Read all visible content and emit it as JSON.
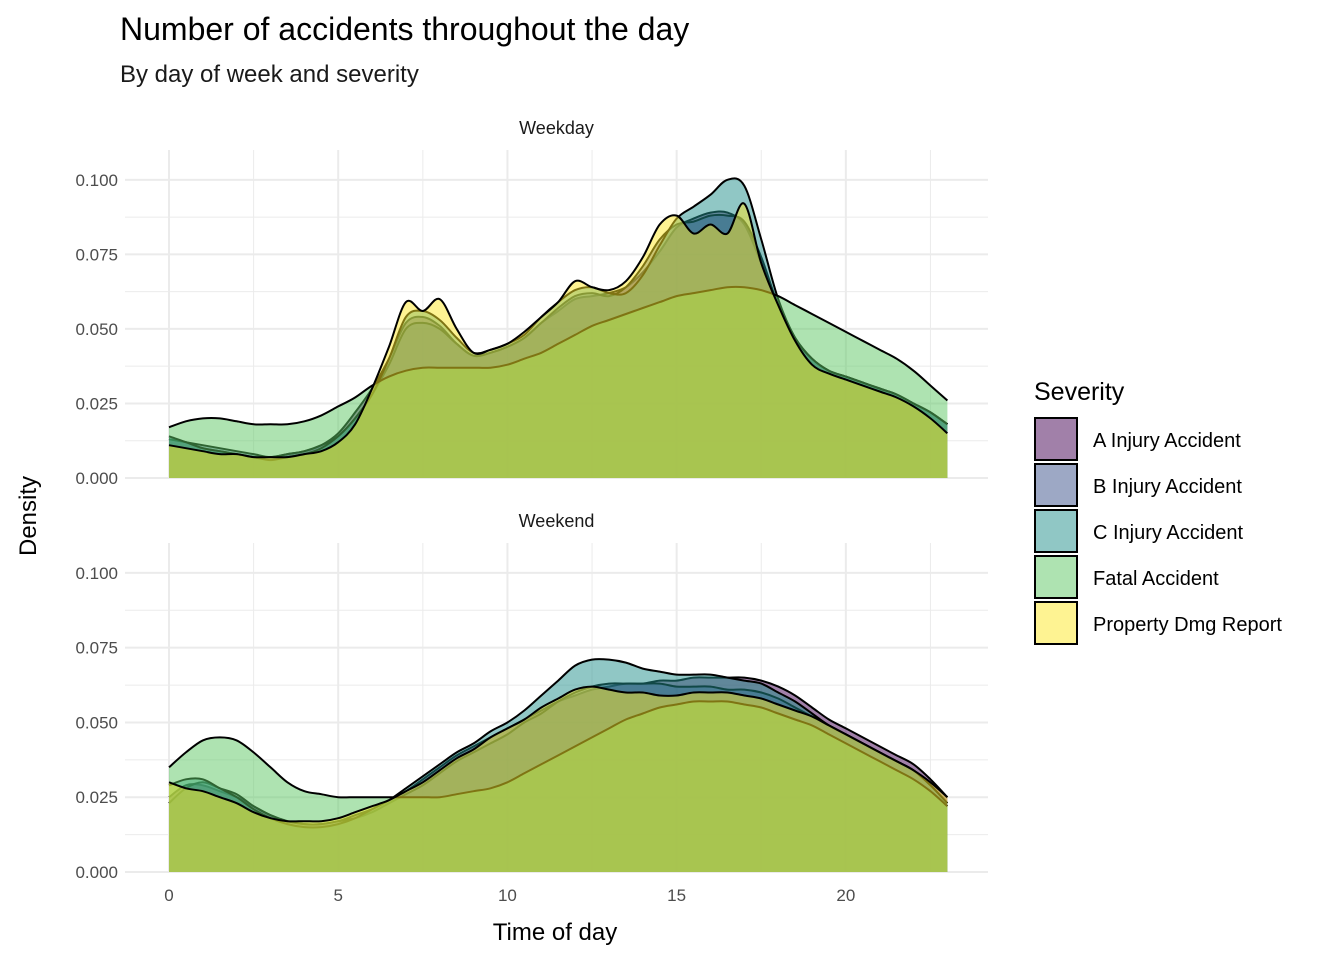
{
  "chart_data": {
    "type": "area",
    "chart_kind": "density",
    "title": "Number of accidents throughout the day",
    "subtitle": "By day of week and severity",
    "xlabel": "Time of day",
    "ylabel": "Density",
    "xlim": [
      -1.3,
      24.2
    ],
    "ylim": [
      0,
      0.11
    ],
    "x_ticks": [
      0,
      5,
      10,
      15,
      20
    ],
    "y_ticks": [
      0,
      0.025,
      0.05,
      0.075,
      0.1
    ],
    "y_tick_labels": [
      "0.000",
      "0.025",
      "0.050",
      "0.075",
      "0.100"
    ],
    "grid": true,
    "legend": {
      "title": "Severity",
      "position": "right"
    },
    "fill_opacity": 0.5,
    "facets": [
      "Weekday",
      "Weekend"
    ],
    "x": [
      0,
      0.5,
      1,
      1.5,
      2,
      2.5,
      3,
      3.5,
      4,
      4.5,
      5,
      5.5,
      6,
      6.5,
      7,
      7.5,
      8,
      8.5,
      9,
      9.5,
      10,
      10.5,
      11,
      11.5,
      12,
      12.5,
      13,
      13.5,
      14,
      14.5,
      15,
      15.5,
      16,
      16.5,
      17,
      17.5,
      18,
      18.5,
      19,
      19.5,
      20,
      20.5,
      21,
      21.5,
      22,
      22.5,
      23
    ],
    "series": [
      {
        "name": "A Injury Accident",
        "color": "#440154"
      },
      {
        "name": "B Injury Accident",
        "color": "#3b528b"
      },
      {
        "name": "C Injury Accident",
        "color": "#21908c"
      },
      {
        "name": "Fatal Accident",
        "color": "#5dc863"
      },
      {
        "name": "Property Dmg Report",
        "color": "#fde725"
      }
    ],
    "panels": [
      {
        "facet": "Weekday",
        "values": {
          "A Injury Accident": [
            0.013,
            0.012,
            0.01,
            0.009,
            0.008,
            0.007,
            0.007,
            0.008,
            0.009,
            0.011,
            0.015,
            0.022,
            0.03,
            0.04,
            0.052,
            0.054,
            0.051,
            0.045,
            0.041,
            0.042,
            0.044,
            0.047,
            0.052,
            0.056,
            0.06,
            0.061,
            0.062,
            0.064,
            0.069,
            0.076,
            0.084,
            0.087,
            0.089,
            0.089,
            0.085,
            0.072,
            0.058,
            0.047,
            0.04,
            0.036,
            0.034,
            0.032,
            0.03,
            0.028,
            0.025,
            0.022,
            0.018
          ],
          "B Injury Accident": [
            0.013,
            0.012,
            0.011,
            0.01,
            0.009,
            0.008,
            0.007,
            0.008,
            0.009,
            0.011,
            0.014,
            0.02,
            0.028,
            0.038,
            0.05,
            0.052,
            0.05,
            0.045,
            0.041,
            0.042,
            0.044,
            0.047,
            0.052,
            0.057,
            0.061,
            0.062,
            0.061,
            0.064,
            0.071,
            0.08,
            0.085,
            0.086,
            0.088,
            0.088,
            0.086,
            0.074,
            0.058,
            0.047,
            0.04,
            0.036,
            0.034,
            0.032,
            0.03,
            0.028,
            0.025,
            0.022,
            0.018
          ],
          "C Injury Accident": [
            0.014,
            0.012,
            0.01,
            0.009,
            0.008,
            0.007,
            0.006,
            0.007,
            0.008,
            0.01,
            0.014,
            0.02,
            0.028,
            0.04,
            0.054,
            0.056,
            0.053,
            0.047,
            0.042,
            0.043,
            0.045,
            0.048,
            0.054,
            0.059,
            0.063,
            0.064,
            0.062,
            0.062,
            0.068,
            0.078,
            0.087,
            0.091,
            0.095,
            0.1,
            0.098,
            0.08,
            0.06,
            0.047,
            0.04,
            0.036,
            0.034,
            0.032,
            0.03,
            0.028,
            0.025,
            0.022,
            0.018
          ],
          "Fatal Accident": [
            0.017,
            0.019,
            0.02,
            0.02,
            0.019,
            0.018,
            0.018,
            0.018,
            0.019,
            0.021,
            0.024,
            0.027,
            0.031,
            0.034,
            0.036,
            0.037,
            0.037,
            0.037,
            0.037,
            0.037,
            0.038,
            0.04,
            0.042,
            0.045,
            0.048,
            0.051,
            0.053,
            0.055,
            0.057,
            0.059,
            0.061,
            0.062,
            0.063,
            0.064,
            0.064,
            0.063,
            0.061,
            0.058,
            0.055,
            0.052,
            0.049,
            0.046,
            0.043,
            0.04,
            0.036,
            0.031,
            0.026
          ],
          "Property Dmg Report": [
            0.011,
            0.01,
            0.009,
            0.008,
            0.008,
            0.007,
            0.007,
            0.007,
            0.008,
            0.009,
            0.012,
            0.018,
            0.03,
            0.044,
            0.059,
            0.056,
            0.06,
            0.05,
            0.042,
            0.043,
            0.045,
            0.049,
            0.054,
            0.059,
            0.066,
            0.064,
            0.063,
            0.066,
            0.074,
            0.085,
            0.088,
            0.082,
            0.085,
            0.082,
            0.092,
            0.072,
            0.058,
            0.046,
            0.038,
            0.035,
            0.033,
            0.031,
            0.029,
            0.027,
            0.024,
            0.02,
            0.015
          ]
        }
      },
      {
        "facet": "Weekend",
        "values": {
          "A Injury Accident": [
            0.025,
            0.029,
            0.029,
            0.027,
            0.025,
            0.022,
            0.019,
            0.017,
            0.016,
            0.016,
            0.017,
            0.019,
            0.021,
            0.024,
            0.027,
            0.031,
            0.035,
            0.039,
            0.042,
            0.045,
            0.048,
            0.051,
            0.054,
            0.057,
            0.059,
            0.061,
            0.062,
            0.063,
            0.063,
            0.064,
            0.064,
            0.065,
            0.065,
            0.065,
            0.065,
            0.064,
            0.062,
            0.059,
            0.055,
            0.051,
            0.048,
            0.045,
            0.042,
            0.039,
            0.036,
            0.031,
            0.025
          ],
          "B Injury Accident": [
            0.023,
            0.028,
            0.03,
            0.028,
            0.026,
            0.022,
            0.019,
            0.017,
            0.016,
            0.016,
            0.017,
            0.018,
            0.02,
            0.023,
            0.026,
            0.029,
            0.033,
            0.037,
            0.04,
            0.043,
            0.046,
            0.05,
            0.053,
            0.057,
            0.06,
            0.062,
            0.063,
            0.063,
            0.063,
            0.063,
            0.062,
            0.062,
            0.062,
            0.061,
            0.061,
            0.06,
            0.058,
            0.055,
            0.052,
            0.049,
            0.046,
            0.043,
            0.04,
            0.037,
            0.034,
            0.029,
            0.023
          ],
          "C Injury Accident": [
            0.029,
            0.031,
            0.031,
            0.028,
            0.025,
            0.021,
            0.018,
            0.016,
            0.015,
            0.015,
            0.016,
            0.018,
            0.021,
            0.024,
            0.028,
            0.032,
            0.036,
            0.04,
            0.043,
            0.047,
            0.05,
            0.054,
            0.059,
            0.064,
            0.069,
            0.071,
            0.071,
            0.07,
            0.068,
            0.067,
            0.066,
            0.066,
            0.066,
            0.065,
            0.064,
            0.063,
            0.06,
            0.057,
            0.053,
            0.049,
            0.046,
            0.043,
            0.04,
            0.037,
            0.034,
            0.029,
            0.023
          ],
          "Fatal Accident": [
            0.035,
            0.04,
            0.044,
            0.045,
            0.044,
            0.04,
            0.035,
            0.03,
            0.027,
            0.026,
            0.025,
            0.025,
            0.025,
            0.025,
            0.025,
            0.025,
            0.025,
            0.026,
            0.027,
            0.028,
            0.03,
            0.033,
            0.036,
            0.039,
            0.042,
            0.045,
            0.048,
            0.051,
            0.053,
            0.055,
            0.056,
            0.057,
            0.057,
            0.057,
            0.056,
            0.055,
            0.053,
            0.051,
            0.049,
            0.046,
            0.043,
            0.04,
            0.037,
            0.034,
            0.031,
            0.027,
            0.022
          ],
          "Property Dmg Report": [
            0.03,
            0.028,
            0.027,
            0.025,
            0.023,
            0.02,
            0.018,
            0.017,
            0.017,
            0.017,
            0.018,
            0.02,
            0.022,
            0.024,
            0.027,
            0.03,
            0.034,
            0.038,
            0.041,
            0.045,
            0.048,
            0.051,
            0.055,
            0.058,
            0.061,
            0.062,
            0.061,
            0.06,
            0.06,
            0.059,
            0.059,
            0.06,
            0.06,
            0.06,
            0.059,
            0.058,
            0.056,
            0.054,
            0.052,
            0.049,
            0.046,
            0.043,
            0.04,
            0.037,
            0.034,
            0.03,
            0.025
          ]
        }
      }
    ]
  }
}
